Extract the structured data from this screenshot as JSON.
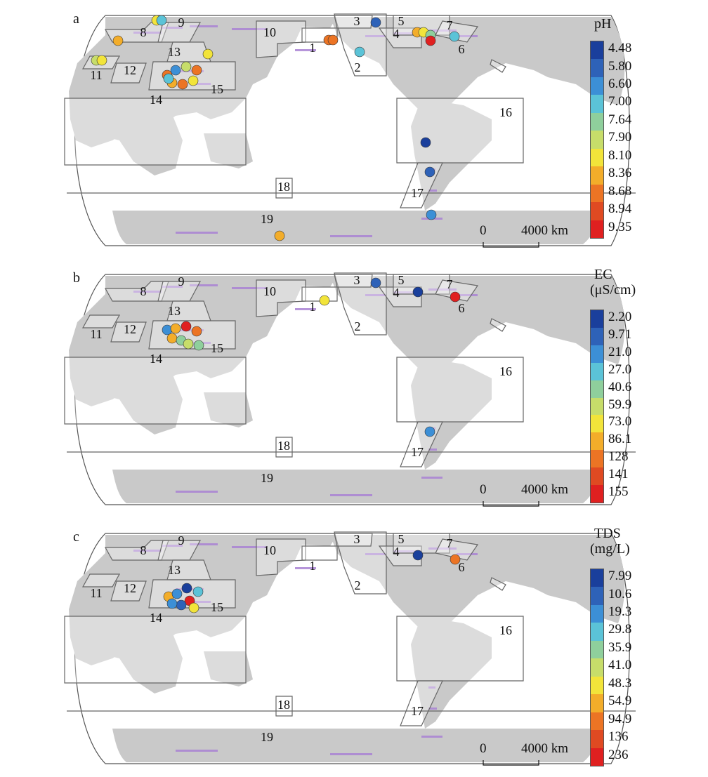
{
  "scale_bar": {
    "zero": "0",
    "distance": "4000 km"
  },
  "region_labels": [
    "1",
    "2",
    "3",
    "4",
    "5",
    "6",
    "7",
    "8",
    "9",
    "10",
    "11",
    "12",
    "13",
    "14",
    "15",
    "16",
    "17",
    "18",
    "19"
  ],
  "panels": [
    {
      "letter": "a",
      "title": "pH",
      "ticks": [
        "4.48",
        "5.80",
        "6.60",
        "7.00",
        "7.64",
        "7.90",
        "8.10",
        "8.36",
        "8.68",
        "8.94",
        "9.35"
      ],
      "colors": [
        "#1a3f9c",
        "#2e62b8",
        "#3c8fd6",
        "#5bc3d7",
        "#8fcf9c",
        "#c7dd6a",
        "#f2e43a",
        "#f3ad2a",
        "#ec7424",
        "#e04a22",
        "#e02020"
      ]
    },
    {
      "letter": "b",
      "title": "EC",
      "title2": "(μS/cm)",
      "ticks": [
        "2.20",
        "9.71",
        "21.0",
        "27.0",
        "40.6",
        "59.9",
        "73.0",
        "86.1",
        "128",
        "141",
        "155"
      ],
      "colors": [
        "#1a3f9c",
        "#2e62b8",
        "#3c8fd6",
        "#5bc3d7",
        "#8fcf9c",
        "#c7dd6a",
        "#f2e43a",
        "#f3ad2a",
        "#ec7424",
        "#e04a22",
        "#e02020"
      ]
    },
    {
      "letter": "c",
      "title": "TDS",
      "title2": "(mg/L)",
      "ticks": [
        "7.99",
        "10.6",
        "19.3",
        "29.8",
        "35.9",
        "41.0",
        "48.3",
        "54.9",
        "94.9",
        "136",
        "236"
      ],
      "colors": [
        "#1a3f9c",
        "#2e62b8",
        "#3c8fd6",
        "#5bc3d7",
        "#8fcf9c",
        "#c7dd6a",
        "#f2e43a",
        "#f3ad2a",
        "#ec7424",
        "#e04a22",
        "#e02020"
      ]
    }
  ]
}
